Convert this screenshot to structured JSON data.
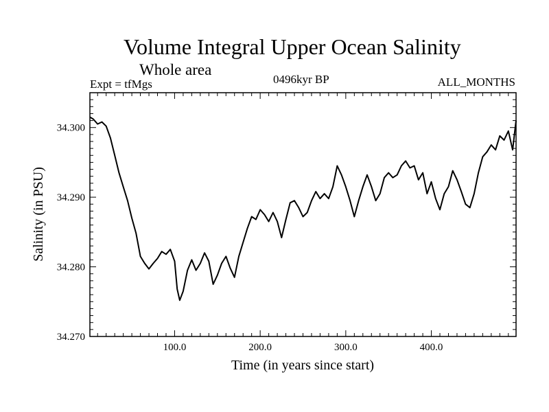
{
  "chart_data": {
    "type": "line",
    "title": "Volume Integral Upper Ocean Salinity",
    "subtitle": "Whole area",
    "annotations": {
      "left": "Expt = tfMgs",
      "center": "0496kyr BP",
      "right": "ALL_MONTHS"
    },
    "xlabel": "Time (in years since start)",
    "ylabel": "Salinity (in PSU)",
    "xlim": [
      1,
      499
    ],
    "ylim": [
      34.27,
      34.305
    ],
    "xticks": [
      100,
      200,
      300,
      400
    ],
    "xtick_labels": [
      "100.0",
      "200.0",
      "300.0",
      "400.0"
    ],
    "yticks": [
      34.27,
      34.28,
      34.29,
      34.3
    ],
    "ytick_labels": [
      "34.270",
      "34.280",
      "34.290",
      "34.300"
    ],
    "grid": false,
    "series": [
      {
        "color": "#000000",
        "x": [
          1,
          5,
          10,
          15,
          20,
          25,
          30,
          35,
          40,
          45,
          50,
          55,
          60,
          65,
          70,
          75,
          80,
          85,
          90,
          95,
          100,
          103,
          106,
          110,
          115,
          120,
          125,
          130,
          135,
          140,
          145,
          150,
          155,
          160,
          165,
          170,
          175,
          180,
          185,
          190,
          195,
          200,
          205,
          210,
          215,
          220,
          225,
          230,
          235,
          240,
          245,
          250,
          255,
          260,
          265,
          270,
          275,
          280,
          285,
          290,
          295,
          300,
          305,
          310,
          315,
          320,
          325,
          330,
          335,
          340,
          345,
          350,
          355,
          360,
          365,
          370,
          375,
          380,
          385,
          390,
          395,
          400,
          405,
          410,
          415,
          420,
          425,
          430,
          435,
          440,
          445,
          450,
          455,
          460,
          465,
          470,
          475,
          480,
          485,
          490,
          495,
          499
        ],
        "y": [
          34.3015,
          34.3012,
          34.3005,
          34.3008,
          34.3002,
          34.2985,
          34.296,
          34.2935,
          34.2915,
          34.2895,
          34.287,
          34.2848,
          34.2815,
          34.2805,
          34.2797,
          34.2805,
          34.2812,
          34.2822,
          34.2818,
          34.2825,
          34.2808,
          34.2768,
          34.2752,
          34.2765,
          34.2795,
          34.281,
          34.2795,
          34.2805,
          34.282,
          34.2808,
          34.2775,
          34.2788,
          34.2805,
          34.2815,
          34.2798,
          34.2785,
          34.2815,
          34.2835,
          34.2855,
          34.2872,
          34.2868,
          34.2882,
          34.2875,
          34.2865,
          34.2878,
          34.2865,
          34.2842,
          34.2868,
          34.2892,
          34.2895,
          34.2885,
          34.2872,
          34.2878,
          34.2895,
          34.2908,
          34.2898,
          34.2905,
          34.2898,
          34.2915,
          34.2945,
          34.2932,
          34.2915,
          34.2895,
          34.2872,
          34.2895,
          34.2915,
          34.2932,
          34.2915,
          34.2895,
          34.2905,
          34.2928,
          34.2935,
          34.2928,
          34.2932,
          34.2945,
          34.2952,
          34.2942,
          34.2945,
          34.2925,
          34.2935,
          34.2905,
          34.2922,
          34.2898,
          34.2882,
          34.2905,
          34.2915,
          34.2938,
          34.2925,
          34.2908,
          34.289,
          34.2885,
          34.2905,
          34.2935,
          34.2958,
          34.2965,
          34.2975,
          34.2968,
          34.2988,
          34.2982,
          34.2995,
          34.2968,
          34.301
        ]
      }
    ]
  }
}
